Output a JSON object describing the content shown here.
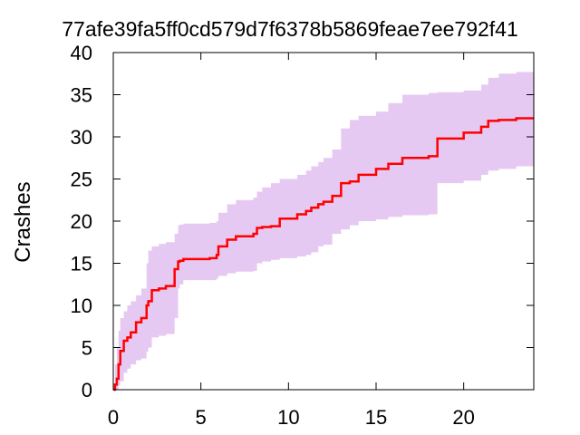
{
  "chart_data": {
    "type": "line",
    "title": "77afe39fa5ff0cd579d7f6378b5869feae7ee792f41",
    "xlabel": "",
    "ylabel": "Crashes",
    "xlim": [
      0,
      24
    ],
    "ylim": [
      0,
      40
    ],
    "x_ticks": [
      0,
      5,
      10,
      15,
      20
    ],
    "y_ticks": [
      0,
      5,
      10,
      15,
      20,
      25,
      30,
      35,
      40
    ],
    "grid": false,
    "colors": {
      "line": "#ff0000",
      "band": "#e6c9f2",
      "axis": "#000000"
    },
    "series": [
      {
        "style": "step",
        "x": [
          0,
          0.1,
          0.2,
          0.3,
          0.4,
          0.6,
          0.8,
          1.0,
          1.3,
          1.6,
          1.9,
          2.0,
          2.2,
          2.6,
          3.0,
          3.5,
          3.7,
          3.8,
          4.0,
          5.5,
          5.9,
          6.0,
          6.5,
          7.0,
          8.0,
          8.2,
          8.5,
          9.0,
          9.5,
          10.5,
          11.0,
          11.3,
          11.7,
          12.0,
          12.5,
          13.0,
          13.5,
          14.0,
          15.0,
          15.7,
          16.5,
          18.0,
          18.5,
          20.0,
          21.0,
          21.4,
          22.0,
          23.0,
          24.0
        ],
        "y": [
          0,
          0.6,
          1.3,
          3.0,
          4.6,
          5.8,
          6.2,
          6.8,
          8.0,
          8.5,
          10.0,
          10.5,
          11.8,
          12.0,
          12.3,
          14.3,
          15.2,
          15.3,
          15.5,
          15.6,
          16.0,
          17.0,
          17.8,
          18.2,
          18.5,
          19.2,
          19.3,
          19.4,
          20.3,
          20.8,
          21.2,
          21.6,
          22.0,
          22.3,
          23.0,
          24.5,
          24.7,
          25.5,
          26.2,
          26.8,
          27.5,
          27.7,
          29.8,
          30.5,
          31.2,
          31.9,
          32.0,
          32.2,
          32.2
        ]
      }
    ],
    "band": {
      "x": [
        0,
        0.1,
        0.2,
        0.3,
        0.4,
        0.6,
        0.8,
        1.0,
        1.3,
        1.6,
        1.9,
        2.0,
        2.2,
        2.6,
        3.0,
        3.5,
        3.7,
        3.8,
        4.0,
        5.5,
        5.9,
        6.0,
        6.5,
        7.0,
        8.0,
        8.2,
        8.5,
        9.0,
        9.5,
        10.5,
        11.0,
        11.3,
        11.7,
        12.0,
        12.5,
        13.0,
        13.5,
        14.0,
        15.0,
        15.7,
        16.5,
        18.0,
        18.5,
        20.0,
        21.0,
        21.4,
        22.0,
        23.0,
        24.0
      ],
      "lower": [
        0,
        0,
        0,
        0.5,
        1.0,
        2.0,
        2.5,
        3.0,
        3.5,
        3.7,
        4.5,
        5.0,
        6.2,
        6.4,
        6.6,
        8.5,
        12.0,
        12.5,
        13.0,
        13.0,
        13.2,
        13.5,
        13.8,
        14.0,
        14.1,
        15.0,
        15.2,
        15.4,
        15.6,
        15.8,
        16.0,
        16.3,
        17.0,
        17.2,
        18.5,
        19.0,
        19.5,
        20.0,
        20.2,
        20.5,
        20.7,
        20.8,
        24.5,
        24.8,
        25.5,
        26.0,
        26.2,
        26.5,
        26.7
      ],
      "upper": [
        0,
        3.0,
        5.0,
        7.0,
        8.5,
        9.3,
        10.0,
        10.5,
        11.2,
        12.0,
        15.0,
        16.5,
        17.0,
        17.3,
        17.5,
        18.5,
        19.5,
        19.6,
        19.7,
        19.8,
        20.0,
        21.0,
        22.0,
        22.5,
        22.8,
        23.5,
        24.0,
        24.5,
        25.0,
        25.5,
        26.0,
        26.5,
        27.0,
        27.5,
        28.5,
        31.0,
        32.0,
        32.5,
        33.0,
        34.0,
        35.0,
        35.2,
        35.3,
        35.5,
        36.2,
        37.0,
        37.5,
        37.7,
        37.8
      ]
    }
  }
}
